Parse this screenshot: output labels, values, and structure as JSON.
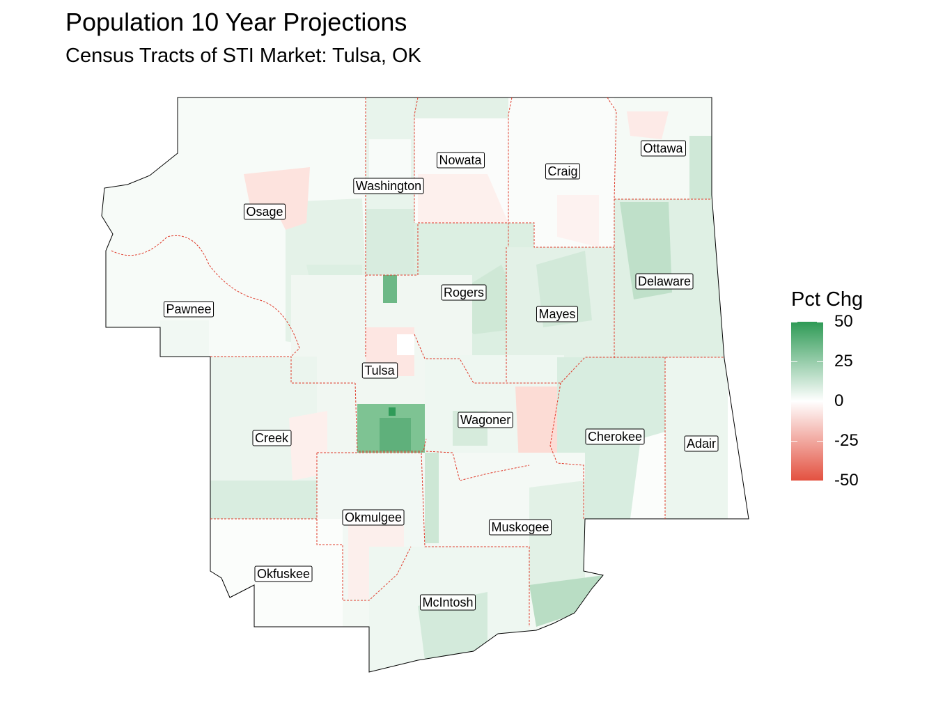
{
  "title": "Population 10 Year Projections",
  "subtitle": "Census Tracts of STI Market: Tulsa, OK",
  "legend": {
    "title": "Pct Chg",
    "ticks": [
      "50",
      "25",
      "0",
      "-25",
      "-50"
    ],
    "range": [
      -50,
      50
    ],
    "colors": {
      "high": "#2e9a55",
      "mid": "#ffffff",
      "low": "#e35140"
    }
  },
  "counties": [
    {
      "name": "Osage"
    },
    {
      "name": "Washington"
    },
    {
      "name": "Nowata"
    },
    {
      "name": "Craig"
    },
    {
      "name": "Ottawa"
    },
    {
      "name": "Pawnee"
    },
    {
      "name": "Rogers"
    },
    {
      "name": "Mayes"
    },
    {
      "name": "Delaware"
    },
    {
      "name": "Tulsa"
    },
    {
      "name": "Wagoner"
    },
    {
      "name": "Creek"
    },
    {
      "name": "Cherokee"
    },
    {
      "name": "Adair"
    },
    {
      "name": "Okmulgee"
    },
    {
      "name": "Muskogee"
    },
    {
      "name": "Okfuskee"
    },
    {
      "name": "McIntosh"
    }
  ]
}
